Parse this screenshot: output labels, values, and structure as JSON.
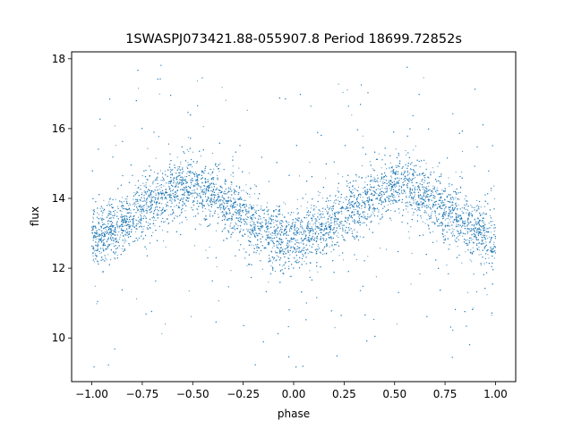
{
  "chart_data": {
    "type": "scatter",
    "title": "1SWASPJ073421.88-055907.8 Period 18699.72852s",
    "xlabel": "phase",
    "ylabel": "flux",
    "xlim": [
      -1.1,
      1.1
    ],
    "ylim": [
      8.75,
      18.2
    ],
    "x_ticks": [
      -1.0,
      -0.75,
      -0.5,
      -0.25,
      0.0,
      0.25,
      0.5,
      0.75,
      1.0
    ],
    "x_tick_labels": [
      "−1.00",
      "−0.75",
      "−0.50",
      "−0.25",
      "0.00",
      "0.25",
      "0.50",
      "0.75",
      "1.00"
    ],
    "y_ticks": [
      10,
      12,
      14,
      16,
      18
    ],
    "y_tick_labels": [
      "10",
      "12",
      "14",
      "16",
      "18"
    ],
    "grid": false,
    "legend": "none",
    "marker_color": "#1f77b4",
    "series": [
      {
        "description_of_shape": "phase-folded light curve, mirrored over phase -1 to 1",
        "x": [
          -1.0,
          -0.9,
          -0.8,
          -0.7,
          -0.6,
          -0.5,
          -0.4,
          -0.3,
          -0.2,
          -0.1,
          0.0,
          0.1,
          0.2,
          0.3,
          0.4,
          0.5,
          0.6,
          0.7,
          0.8,
          0.9,
          1.0
        ],
        "y": [
          12.8,
          13.1,
          13.5,
          13.9,
          14.25,
          14.35,
          14.15,
          13.7,
          13.25,
          12.95,
          12.75,
          13.0,
          13.35,
          13.8,
          14.15,
          14.35,
          14.2,
          13.85,
          13.45,
          13.1,
          12.8
        ]
      }
    ]
  }
}
